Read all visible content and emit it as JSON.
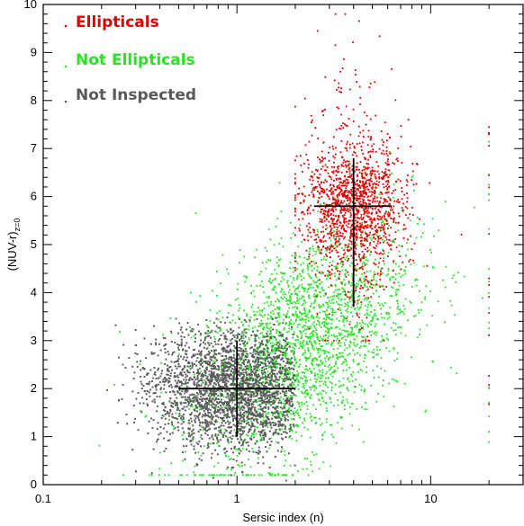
{
  "chart_data": {
    "type": "scatter",
    "title": "",
    "xlabel": "Sersic index (n)",
    "ylabel": "(NUV-r)",
    "ylabel_subscript": "z=0",
    "xscale": "log",
    "xlim": [
      0.1,
      30
    ],
    "ylim": [
      0,
      10
    ],
    "grid": false,
    "legend_position": "top-left",
    "x_tick_labels": [
      "0.1",
      "1",
      "10"
    ],
    "y_tick_labels": [
      "0",
      "1",
      "2",
      "3",
      "4",
      "5",
      "6",
      "7",
      "8",
      "9",
      "10"
    ],
    "series": [
      {
        "name": "Ellipticals",
        "color": "#e00000",
        "marker": "point",
        "distribution": {
          "centroid": [
            4,
            5.8
          ],
          "n_range": [
            2,
            20
          ],
          "color_range": [
            3,
            9.8
          ],
          "approx_points": 1500
        },
        "error_cross": {
          "x": 4,
          "y": 5.8,
          "x_range": [
            2.5,
            6.3
          ],
          "y_range": [
            3.7,
            6.8
          ]
        }
      },
      {
        "name": "Not Ellipticals",
        "color": "#22e622",
        "marker": "point",
        "distribution": {
          "n_range": [
            0.1,
            20
          ],
          "color_range": [
            0,
            9.8
          ],
          "approx_points": 2500
        }
      },
      {
        "name": "Not Inspected",
        "color": "#5a5a5a",
        "marker": "point",
        "distribution": {
          "centroid": [
            1,
            2
          ],
          "n_range": [
            0.1,
            2
          ],
          "color_range": [
            0,
            3.5
          ],
          "approx_points": 5000
        },
        "error_cross": {
          "x": 1,
          "y": 2,
          "x_range": [
            0.5,
            2
          ],
          "y_range": [
            1,
            3
          ]
        }
      }
    ]
  }
}
